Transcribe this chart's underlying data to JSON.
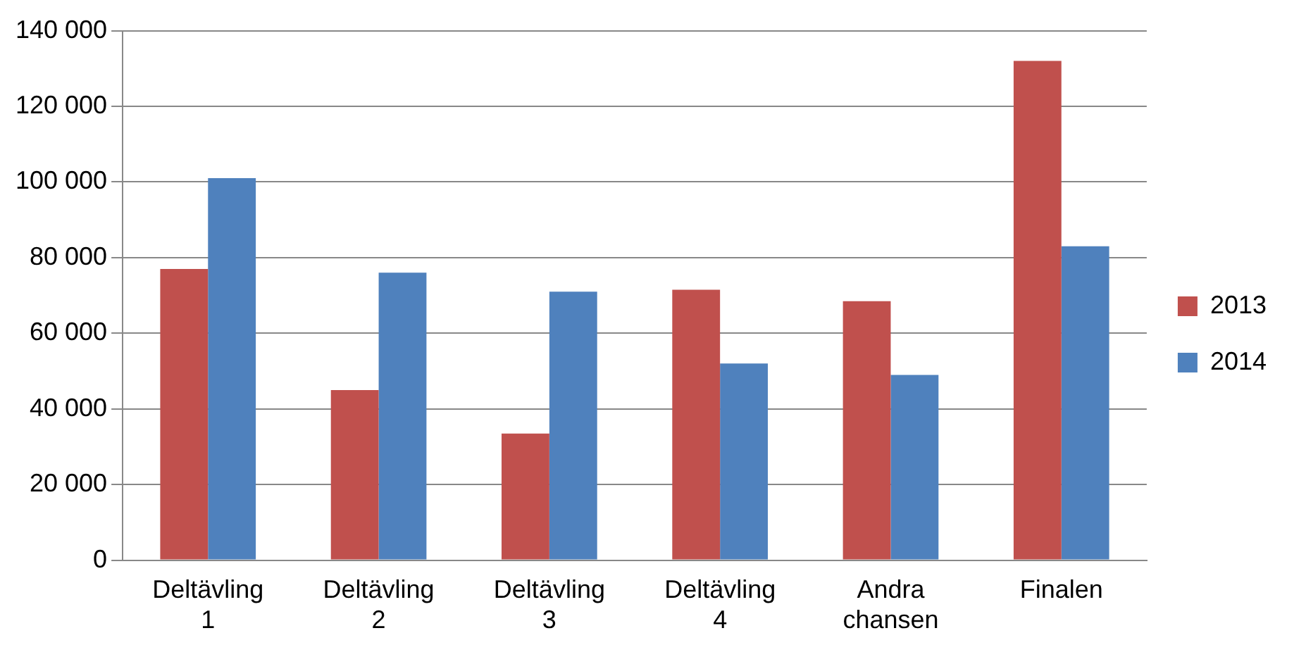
{
  "chart_data": {
    "type": "bar",
    "categories": [
      "Deltävling 1",
      "Deltävling 2",
      "Deltävling 3",
      "Deltävling 4",
      "Andra chansen",
      "Finalen"
    ],
    "series": [
      {
        "name": "2013",
        "color": "#c0504d",
        "values": [
          77000,
          45000,
          33500,
          71500,
          68500,
          132000
        ]
      },
      {
        "name": "2014",
        "color": "#4f81bd",
        "values": [
          101000,
          76000,
          71000,
          52000,
          49000,
          83000
        ]
      }
    ],
    "ylim": [
      0,
      140000
    ],
    "yticks": [
      {
        "value": 0,
        "label": "0"
      },
      {
        "value": 20000,
        "label": "20 000"
      },
      {
        "value": 40000,
        "label": "40 000"
      },
      {
        "value": 60000,
        "label": "60 000"
      },
      {
        "value": 80000,
        "label": "80 000"
      },
      {
        "value": 100000,
        "label": "100 000"
      },
      {
        "value": 120000,
        "label": "120 000"
      },
      {
        "value": 140000,
        "label": "140 000"
      }
    ],
    "grid": "y",
    "legend": "right"
  }
}
